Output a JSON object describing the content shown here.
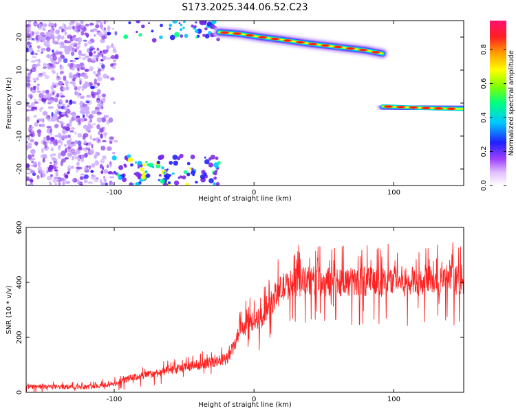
{
  "figure": {
    "title": "S173.2025.344.06.52.C23"
  },
  "chart_data": [
    {
      "type": "heatmap",
      "xlabel": "Height of straight line (km)",
      "ylabel": "Frequency (Hz)",
      "xlim": [
        -163,
        150
      ],
      "ylim": [
        -25,
        25
      ],
      "x_ticks": [
        -100,
        0,
        100
      ],
      "y_ticks": [
        -20,
        -10,
        0,
        10,
        20
      ],
      "colorbar": {
        "label": "Normalized spectral amplitude",
        "range": [
          0,
          0.97
        ],
        "ticks": [
          0.0,
          0.2,
          0.4,
          0.6,
          0.8
        ],
        "tick_labels": [
          "0.0",
          "0.2",
          "0.4",
          "0.6",
          "0.8"
        ],
        "colors": [
          "#ffffff",
          "#a040ff",
          "#2020ff",
          "#00c8ff",
          "#00ff80",
          "#80ff00",
          "#ffff00",
          "#ffa000",
          "#ff2020",
          "#ff1070"
        ]
      },
      "features": {
        "upper_band": {
          "x": [
            -25,
            -10,
            5,
            20,
            40,
            60,
            80,
            92
          ],
          "freq": [
            21.5,
            21,
            20,
            19.2,
            18,
            17,
            16,
            15
          ]
        },
        "lower_band": {
          "x": [
            92,
            110,
            130,
            150
          ],
          "freq": [
            -1,
            -1.3,
            -1.6,
            -1.8
          ]
        },
        "noise_region_x": [
          -163,
          -100
        ]
      }
    },
    {
      "type": "line",
      "xlabel": "Height of straight line (km)",
      "ylabel": "SNR (10 * v/v)",
      "xlim": [
        -163,
        150
      ],
      "ylim": [
        0,
        600
      ],
      "x_ticks": [
        -100,
        0,
        100
      ],
      "y_ticks": [
        0,
        200,
        400,
        600
      ],
      "series": [
        {
          "color": "#ff2020",
          "x": [
            -163,
            -140,
            -120,
            -100,
            -90,
            -80,
            -70,
            -60,
            -50,
            -40,
            -30,
            -20,
            -15,
            -10,
            -5,
            0,
            5,
            10,
            15,
            20,
            25,
            30,
            40,
            50,
            60,
            70,
            80,
            90,
            100,
            110,
            120,
            130,
            140,
            150
          ],
          "y": [
            20,
            20,
            20,
            30,
            50,
            60,
            70,
            80,
            90,
            100,
            110,
            120,
            160,
            220,
            250,
            260,
            270,
            300,
            350,
            380,
            390,
            400,
            405,
            400,
            405,
            400,
            405,
            400,
            410,
            400,
            410,
            405,
            410,
            410
          ]
        }
      ]
    }
  ]
}
